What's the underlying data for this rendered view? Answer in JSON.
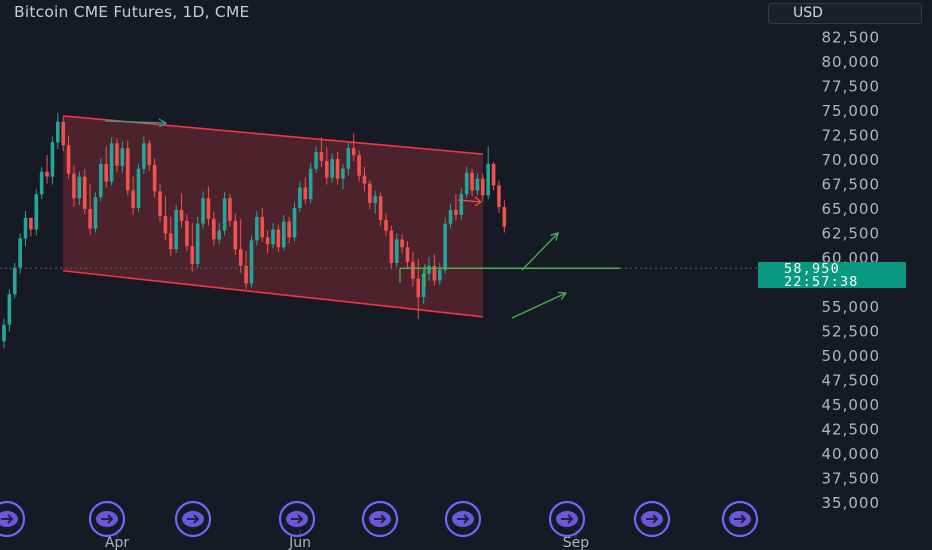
{
  "header": {
    "title": "Bitcoin CME Futures, 1D, CME",
    "currency_button": "USD"
  },
  "price_axis": {
    "ticks": [
      "82,500",
      "80,000",
      "77,500",
      "75,000",
      "72,500",
      "70,000",
      "67,500",
      "65,000",
      "62,500",
      "60,000",
      "55,000",
      "52,500",
      "50,000",
      "47,500",
      "45,000",
      "42,500",
      "40,000",
      "37,500",
      "35,000"
    ]
  },
  "time_axis": {
    "labels": [
      {
        "text": "Apr",
        "date": "2024-04-01"
      },
      {
        "text": "Jun",
        "date": "2024-06-01"
      },
      {
        "text": "Sep",
        "date": "2024-09-01"
      }
    ]
  },
  "last_price": {
    "price": "58,950",
    "countdown": "22:57:38",
    "value": 58950
  },
  "colors": {
    "background": "#161a25",
    "up_candle": "#26a69a",
    "down_candle": "#ef5350",
    "channel_line": "#f23645",
    "channel_fill": "#7a2a33",
    "price_line": "#4caf50",
    "price_label_bg": "#089981",
    "event_icon": "#7b61ff"
  },
  "icons": [
    "event-arrow-icon"
  ],
  "chart_data": {
    "type": "candlestick",
    "title": "Bitcoin CME Futures, 1D, CME",
    "ylim": [
      34000,
      84500
    ],
    "y_scale": "linear",
    "grid": false,
    "annotations": [
      {
        "type": "channel",
        "shape": "descending parallel channel",
        "from": {
          "date": "2024-03-14",
          "upper": 74500,
          "lower": 58700
        },
        "to": {
          "date": "2024-08-01",
          "upper": 70600,
          "lower": 54000
        }
      },
      {
        "type": "horizontal_line",
        "value": 58950
      },
      {
        "type": "arrow",
        "direction": "up",
        "note": "projection arrows toward channel breakout"
      }
    ],
    "series": [
      {
        "kind": "ohlc_daily",
        "values": [
          [
            51500,
            53800,
            50800,
            53200
          ],
          [
            53200,
            56800,
            52500,
            56300
          ],
          [
            56300,
            59500,
            55900,
            59000
          ],
          [
            59000,
            62500,
            58400,
            62000
          ],
          [
            62000,
            64800,
            61200,
            64100
          ],
          [
            64100,
            63600,
            62200,
            62900
          ],
          [
            62900,
            67000,
            62300,
            66500
          ],
          [
            66500,
            69300,
            66000,
            68800
          ],
          [
            68800,
            70500,
            67600,
            68300
          ],
          [
            68300,
            72400,
            67500,
            71800
          ],
          [
            71800,
            74800,
            71100,
            73900
          ],
          [
            73900,
            74400,
            70900,
            71500
          ],
          [
            71500,
            72500,
            68100,
            68600
          ],
          [
            68600,
            69500,
            65200,
            66100
          ],
          [
            66100,
            68800,
            65400,
            68300
          ],
          [
            68300,
            69100,
            64500,
            65000
          ],
          [
            65000,
            67600,
            62400,
            63000
          ],
          [
            63000,
            66700,
            62600,
            66200
          ],
          [
            66200,
            70200,
            65800,
            69600
          ],
          [
            69600,
            71400,
            67200,
            67800
          ],
          [
            67800,
            72300,
            67400,
            71700
          ],
          [
            71700,
            72200,
            68800,
            69400
          ],
          [
            69400,
            71900,
            68700,
            71200
          ],
          [
            71200,
            72000,
            66400,
            66900
          ],
          [
            66900,
            68300,
            64400,
            65100
          ],
          [
            65100,
            69600,
            64700,
            69100
          ],
          [
            69100,
            72400,
            68600,
            71700
          ],
          [
            71700,
            72000,
            68900,
            69500
          ],
          [
            69500,
            70200,
            66200,
            66800
          ],
          [
            66800,
            67600,
            63700,
            64300
          ],
          [
            64300,
            66300,
            61800,
            62500
          ],
          [
            62500,
            64200,
            60200,
            60900
          ],
          [
            60900,
            65400,
            60500,
            64900
          ],
          [
            64900,
            66600,
            63100,
            63800
          ],
          [
            63800,
            64500,
            60700,
            61200
          ],
          [
            61200,
            63600,
            58600,
            59400
          ],
          [
            59400,
            64200,
            59000,
            63500
          ],
          [
            63500,
            66800,
            63000,
            66100
          ],
          [
            66100,
            67300,
            63300,
            64000
          ],
          [
            64000,
            64700,
            61300,
            61900
          ],
          [
            61900,
            63600,
            61400,
            62800
          ],
          [
            62800,
            66700,
            62300,
            66100
          ],
          [
            66100,
            66500,
            63200,
            63800
          ],
          [
            63800,
            64500,
            60300,
            60900
          ],
          [
            60900,
            64000,
            58500,
            59200
          ],
          [
            59200,
            60700,
            56800,
            57400
          ],
          [
            57400,
            62300,
            57000,
            61800
          ],
          [
            61800,
            64800,
            61300,
            64200
          ],
          [
            64200,
            65100,
            61600,
            62100
          ],
          [
            62100,
            62800,
            60500,
            61400
          ],
          [
            61400,
            63600,
            61000,
            62900
          ],
          [
            62900,
            63400,
            60600,
            61100
          ],
          [
            61100,
            64400,
            60800,
            63700
          ],
          [
            63700,
            64200,
            61500,
            62100
          ],
          [
            62100,
            65700,
            61700,
            65100
          ],
          [
            65100,
            67800,
            64700,
            67200
          ],
          [
            67200,
            68200,
            65500,
            66000
          ],
          [
            66000,
            69700,
            65600,
            69100
          ],
          [
            69100,
            71400,
            68700,
            70800
          ],
          [
            70800,
            72300,
            69300,
            69900
          ],
          [
            69900,
            71300,
            67500,
            68200
          ],
          [
            68200,
            70600,
            67700,
            70100
          ],
          [
            70100,
            70800,
            67500,
            68100
          ],
          [
            68100,
            69600,
            67000,
            69100
          ],
          [
            69100,
            71800,
            68400,
            71200
          ],
          [
            71200,
            72700,
            69900,
            70500
          ],
          [
            70500,
            71000,
            67800,
            68400
          ],
          [
            68400,
            69300,
            66800,
            67600
          ],
          [
            67600,
            67900,
            65000,
            65600
          ],
          [
            65600,
            66900,
            64500,
            66300
          ],
          [
            66300,
            66700,
            63300,
            63900
          ],
          [
            63900,
            64600,
            62200,
            62800
          ],
          [
            62800,
            63300,
            58900,
            59500
          ],
          [
            59500,
            62500,
            59100,
            61900
          ],
          [
            61900,
            62400,
            60500,
            61100
          ],
          [
            61100,
            61700,
            58900,
            59600
          ],
          [
            59600,
            60600,
            57100,
            57900
          ],
          [
            57900,
            59900,
            53800,
            56000
          ],
          [
            56000,
            58900,
            55300,
            58400
          ],
          [
            58400,
            60100,
            57700,
            59200
          ],
          [
            59200,
            60400,
            57200,
            57700
          ],
          [
            57700,
            59500,
            57300,
            58800
          ],
          [
            58800,
            64100,
            58400,
            63500
          ],
          [
            63500,
            65500,
            63000,
            64900
          ],
          [
            64900,
            66500,
            63800,
            64400
          ],
          [
            64400,
            67100,
            63900,
            66500
          ],
          [
            66500,
            69300,
            66100,
            68700
          ],
          [
            68700,
            69100,
            66300,
            66900
          ],
          [
            66900,
            68600,
            66400,
            68100
          ],
          [
            68100,
            68600,
            65800,
            66400
          ],
          [
            66400,
            71400,
            66000,
            69600
          ],
          [
            69600,
            69800,
            66900,
            67400
          ],
          [
            67400,
            67900,
            64600,
            65200
          ],
          [
            65200,
            65900,
            62600,
            63200
          ]
        ]
      }
    ]
  }
}
